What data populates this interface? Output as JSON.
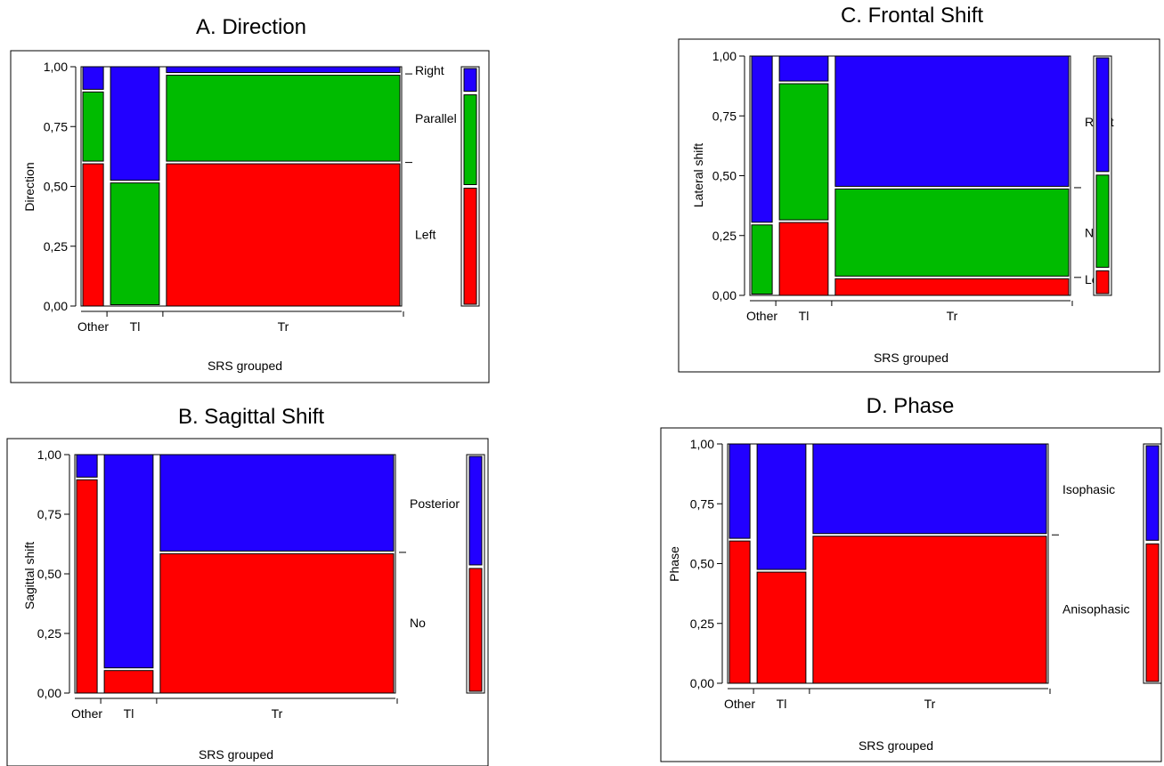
{
  "colors": {
    "red": "#ff0000",
    "green": "#00bb00",
    "blue": "#2200ff"
  },
  "chart_data": [
    {
      "type": "mosaic",
      "title": "A. Direction",
      "xlabel": "SRS grouped",
      "ylabel": "Direction",
      "yticks": [
        "0,00",
        "0,25",
        "0,50",
        "0,75",
        "1,00"
      ],
      "categories": [
        "Other",
        "Tl",
        "Tr"
      ],
      "category_widths": [
        0.077,
        0.167,
        0.756
      ],
      "levels": [
        "Left",
        "Parallel",
        "Right"
      ],
      "level_colors": [
        "red",
        "green",
        "blue"
      ],
      "proportions": [
        [
          0.6,
          0.3,
          0.1
        ],
        [
          0.0,
          0.52,
          0.48
        ],
        [
          0.6,
          0.37,
          0.03
        ]
      ],
      "overall": [
        0.5,
        0.39,
        0.11
      ]
    },
    {
      "type": "mosaic",
      "title": "B. Sagittal Shift",
      "xlabel": "SRS grouped",
      "ylabel": "Sagittal shift",
      "yticks": [
        "0,00",
        "0,25",
        "0,50",
        "0,75",
        "1,00"
      ],
      "categories": [
        "Other",
        "Tl",
        "Tr"
      ],
      "category_widths": [
        0.077,
        0.167,
        0.756
      ],
      "levels": [
        "No",
        "Posterior"
      ],
      "level_colors": [
        "red",
        "blue"
      ],
      "proportions": [
        [
          0.9,
          0.1
        ],
        [
          0.1,
          0.9
        ],
        [
          0.59,
          0.41
        ]
      ],
      "overall": [
        0.53,
        0.47
      ]
    },
    {
      "type": "mosaic",
      "title": "C. Frontal Shift",
      "xlabel": "SRS grouped",
      "ylabel": "Lateral shift",
      "yticks": [
        "0,00",
        "0,25",
        "0,50",
        "0,75",
        "1,00"
      ],
      "categories": [
        "Other",
        "Tl",
        "Tr"
      ],
      "category_widths": [
        0.077,
        0.167,
        0.756
      ],
      "levels": [
        "Left",
        "No",
        "Right"
      ],
      "level_colors": [
        "red",
        "green",
        "blue"
      ],
      "proportions": [
        [
          0.0,
          0.3,
          0.7
        ],
        [
          0.31,
          0.58,
          0.11
        ],
        [
          0.075,
          0.375,
          0.55
        ]
      ],
      "overall": [
        0.11,
        0.4,
        0.49
      ]
    },
    {
      "type": "mosaic",
      "title": "D. Phase",
      "xlabel": "SRS grouped",
      "ylabel": "Phase",
      "yticks": [
        "0,00",
        "0,25",
        "0,50",
        "0,75",
        "1,00"
      ],
      "categories": [
        "Other",
        "Tl",
        "Tr"
      ],
      "category_widths": [
        0.077,
        0.167,
        0.756
      ],
      "levels": [
        "Anisophasic",
        "Isophasic"
      ],
      "level_colors": [
        "red",
        "blue"
      ],
      "proportions": [
        [
          0.6,
          0.4
        ],
        [
          0.47,
          0.53
        ],
        [
          0.62,
          0.38
        ]
      ],
      "overall": [
        0.59,
        0.41
      ]
    }
  ]
}
